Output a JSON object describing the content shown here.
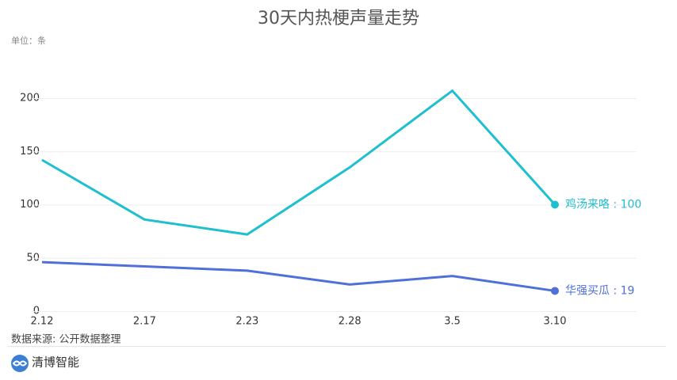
{
  "chart_data": {
    "type": "line",
    "title": "30天内热梗声量走势",
    "unit": "单位：条",
    "categories": [
      "2.12",
      "2.17",
      "2.23",
      "2.28",
      "3.5",
      "3.10"
    ],
    "series": [
      {
        "name": "鸡汤来咯",
        "color": "#1ebfcf",
        "values": [
          142,
          86,
          72,
          135,
          207,
          100
        ],
        "value_labels": [
          null,
          null,
          null,
          null,
          null,
          "鸡汤来咯 : 100"
        ]
      },
      {
        "name": "华强买瓜",
        "color": "#4f6fd9",
        "values": [
          46,
          42,
          38,
          25,
          33,
          19
        ],
        "value_labels": [
          null,
          null,
          null,
          null,
          null,
          "华强买瓜 : 19"
        ]
      }
    ],
    "ylim": [
      0,
      200
    ],
    "yticks": [
      0,
      50,
      100,
      150,
      200
    ],
    "grid": true
  },
  "footer": {
    "source": "数据来源: 公开数据整理",
    "logo": "清博智能"
  }
}
